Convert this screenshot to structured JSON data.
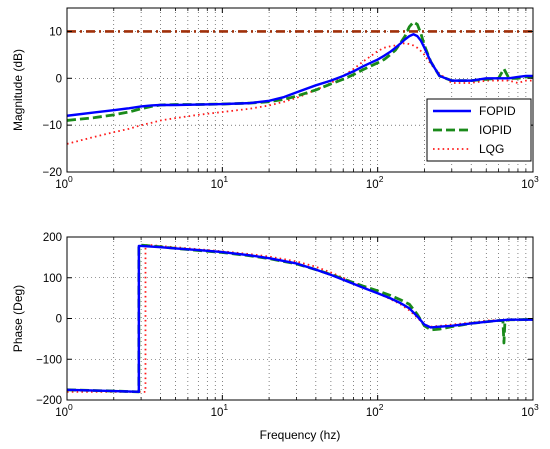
{
  "chart_data": [
    {
      "type": "line",
      "xlabel": "",
      "ylabel": "Magnitude (dB)",
      "xscale": "log",
      "xlim": [
        1,
        1000
      ],
      "ylim": [
        -20,
        15
      ],
      "x_ticks": [
        1,
        10,
        100,
        1000
      ],
      "x_tick_labels": [
        {
          "base": "10",
          "exp": "0"
        },
        {
          "base": "10",
          "exp": "1"
        },
        {
          "base": "10",
          "exp": "2"
        },
        {
          "base": "10",
          "exp": "3"
        }
      ],
      "y_ticks": [
        -20,
        -10,
        0,
        10
      ],
      "y_tick_labels": [
        "−20",
        "−10",
        "0",
        "10"
      ],
      "grid": true,
      "legend": {
        "placement": "right",
        "entries": [
          "FOPID",
          "IOPID",
          "LQG"
        ]
      },
      "reference_lines": [
        {
          "y": 10,
          "color": "#a0300a",
          "style": "dash-dot"
        }
      ],
      "series": [
        {
          "name": "FOPID",
          "color": "#0000ff",
          "style": "solid",
          "x": [
            1,
            1.5,
            2,
            2.5,
            3,
            3.5,
            4,
            5,
            7,
            10,
            15,
            20,
            25,
            30,
            40,
            50,
            60,
            70,
            80,
            90,
            100,
            110,
            120,
            130,
            140,
            150,
            160,
            170,
            180,
            190,
            200,
            220,
            250,
            300,
            400,
            500,
            600,
            700,
            800,
            900,
            1000
          ],
          "y": [
            -8,
            -7.3,
            -6.8,
            -6.4,
            -6,
            -5.8,
            -5.7,
            -5.7,
            -5.6,
            -5.5,
            -5.3,
            -4.8,
            -4,
            -3,
            -1.5,
            -0.5,
            0.5,
            1.5,
            2.5,
            3.3,
            4,
            4.8,
            5.6,
            6.5,
            7.4,
            8.3,
            9,
            9.4,
            9,
            8,
            6.5,
            3.5,
            0.5,
            -0.5,
            -0.5,
            0,
            0,
            0,
            0.3,
            0.5,
            0.5
          ]
        },
        {
          "name": "IOPID",
          "color": "#1a8a1a",
          "style": "dashed",
          "x": [
            1,
            1.5,
            2,
            2.5,
            3,
            3.5,
            4,
            5,
            7,
            10,
            15,
            20,
            25,
            30,
            40,
            50,
            60,
            70,
            80,
            90,
            100,
            110,
            120,
            130,
            140,
            150,
            160,
            170,
            180,
            190,
            200,
            220,
            250,
            300,
            400,
            500,
            600,
            650,
            700,
            800,
            900,
            1000
          ],
          "y": [
            -9,
            -8.4,
            -7.8,
            -7.2,
            -6.5,
            -6,
            -5.7,
            -5.6,
            -5.6,
            -5.5,
            -5.3,
            -5,
            -4.5,
            -3.8,
            -2.5,
            -1.2,
            -0.2,
            0.8,
            1.8,
            2.6,
            3.3,
            4,
            5,
            6,
            7.5,
            9,
            11,
            12,
            11.5,
            9.5,
            7,
            3.5,
            0.5,
            -0.5,
            -0.5,
            -0.2,
            0,
            2,
            0,
            0,
            0.3,
            0.3
          ]
        },
        {
          "name": "LQG",
          "color": "#ff1a1a",
          "style": "dotted",
          "x": [
            1,
            1.5,
            2,
            2.5,
            3,
            3.5,
            4,
            5,
            7,
            10,
            15,
            20,
            25,
            30,
            40,
            50,
            60,
            70,
            80,
            90,
            100,
            110,
            120,
            130,
            140,
            150,
            160,
            170,
            180,
            190,
            200,
            220,
            250,
            300,
            400,
            500,
            600,
            700,
            800,
            900,
            1000
          ],
          "y": [
            -14,
            -12.5,
            -11.5,
            -10.8,
            -10,
            -9.5,
            -9,
            -8.5,
            -7.8,
            -7.2,
            -6.5,
            -5.8,
            -5,
            -4.2,
            -2.5,
            -1,
            0.5,
            2,
            3.5,
            4.7,
            5.8,
            6.5,
            6.8,
            7,
            7.3,
            7.5,
            7.3,
            7,
            6.5,
            5.8,
            5,
            3,
            1,
            -1,
            -1,
            -0.5,
            -0.5,
            -0.5,
            -1,
            -0.5,
            -0.5
          ]
        }
      ]
    },
    {
      "type": "line",
      "xlabel": "Frequency (hz)",
      "ylabel": "Phase (Deg)",
      "xscale": "log",
      "xlim": [
        1,
        1000
      ],
      "ylim": [
        -200,
        200
      ],
      "x_ticks": [
        1,
        10,
        100,
        1000
      ],
      "x_tick_labels": [
        {
          "base": "10",
          "exp": "0"
        },
        {
          "base": "10",
          "exp": "1"
        },
        {
          "base": "10",
          "exp": "2"
        },
        {
          "base": "10",
          "exp": "3"
        }
      ],
      "y_ticks": [
        -200,
        -100,
        0,
        100,
        200
      ],
      "y_tick_labels": [
        "−200",
        "−100",
        "0",
        "100",
        "200"
      ],
      "grid": true,
      "series": [
        {
          "name": "FOPID",
          "color": "#0000ff",
          "style": "solid",
          "x": [
            1,
            2,
            2.9,
            2.901,
            3,
            4,
            5,
            7,
            10,
            15,
            20,
            30,
            40,
            50,
            60,
            70,
            80,
            100,
            120,
            140,
            160,
            180,
            200,
            220,
            250,
            300,
            400,
            500,
            600,
            700,
            800,
            1000
          ],
          "y": [
            -175,
            -178,
            -180,
            178,
            178,
            175,
            172,
            168,
            163,
            155,
            148,
            135,
            120,
            107,
            95,
            85,
            76,
            62,
            50,
            38,
            25,
            5,
            -15,
            -22,
            -20,
            -18,
            -12,
            -8,
            -5,
            -3,
            -3,
            -3
          ]
        },
        {
          "name": "IOPID",
          "color": "#1a8a1a",
          "style": "dashed",
          "x": [
            1,
            2,
            2.9,
            2.901,
            3,
            4,
            5,
            7,
            10,
            15,
            20,
            30,
            40,
            50,
            60,
            70,
            80,
            100,
            120,
            140,
            160,
            180,
            200,
            220,
            250,
            300,
            400,
            500,
            600,
            640,
            650,
            660,
            700,
            800,
            1000
          ],
          "y": [
            -175,
            -178,
            -180,
            180,
            180,
            176,
            172,
            167,
            162,
            154,
            147,
            134,
            120,
            108,
            97,
            88,
            80,
            68,
            57,
            46,
            35,
            10,
            -18,
            -28,
            -26,
            -20,
            -12,
            -8,
            -5,
            -5,
            -60,
            -5,
            -3,
            -3,
            -2
          ]
        },
        {
          "name": "LQG",
          "color": "#ff1a1a",
          "style": "dotted",
          "x": [
            1,
            2,
            3,
            3.2,
            3.201,
            3.5,
            4,
            5,
            7,
            10,
            15,
            20,
            30,
            40,
            50,
            60,
            70,
            80,
            100,
            120,
            140,
            160,
            180,
            200,
            220,
            250,
            300,
            400,
            500,
            700,
            1000
          ],
          "y": [
            -180,
            -180,
            -180,
            -180,
            180,
            180,
            178,
            175,
            170,
            165,
            158,
            152,
            140,
            127,
            113,
            100,
            88,
            78,
            62,
            48,
            35,
            20,
            2,
            -15,
            -20,
            -18,
            -15,
            -10,
            -5,
            -3,
            -3
          ]
        }
      ]
    }
  ]
}
